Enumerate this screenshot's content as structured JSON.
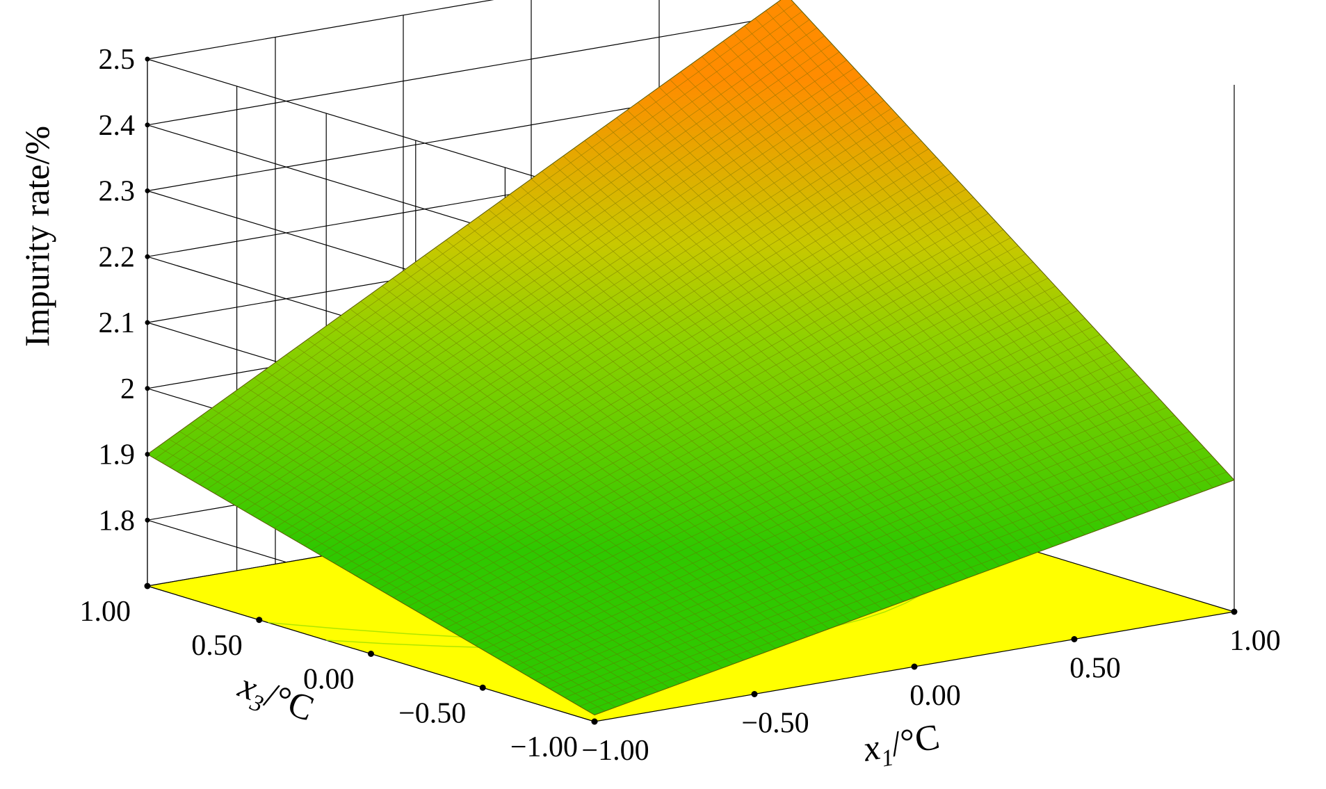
{
  "chart_data": {
    "type": "surface-3d",
    "zlabel": "Impurity rate/%",
    "x1_label": {
      "var": "x",
      "sub": "1",
      "unit": "/°C"
    },
    "x3_label": {
      "var": "x",
      "sub": "3",
      "unit": "/°C"
    },
    "z_ticks": [
      "1.8",
      "1.9",
      "2",
      "2.1",
      "2.2",
      "2.3",
      "2.4",
      "2.5"
    ],
    "z_tick_values": [
      1.8,
      1.9,
      2.0,
      2.1,
      2.2,
      2.3,
      2.4,
      2.5
    ],
    "x1_ticks": [
      "−1.00",
      "−0.50",
      "0.00",
      "0.50",
      "1.00"
    ],
    "x1_tick_values": [
      -1,
      -0.5,
      0,
      0.5,
      1
    ],
    "x3_ticks": [
      "−1.00",
      "−0.50",
      "0.00",
      "0.50",
      "1.00"
    ],
    "x3_tick_values": [
      -1,
      -0.5,
      0,
      0.5,
      1
    ],
    "zlim": [
      1.7,
      2.5
    ],
    "x1_range": [
      -1,
      1
    ],
    "x3_range": [
      -1,
      1
    ],
    "surface_corners": [
      {
        "x1": -1,
        "x3": -1,
        "z": 1.71
      },
      {
        "x1": 1,
        "x3": -1,
        "z": 1.9
      },
      {
        "x1": 1,
        "x3": 1,
        "z": 2.43
      },
      {
        "x1": -1,
        "x3": 1,
        "z": 1.9
      }
    ],
    "colors": {
      "low": "#2fc800",
      "mid": "#c8c800",
      "high": "#ff8c00",
      "floor": "#ffff00",
      "mesh": "#6b6b00",
      "grid": "#000000"
    }
  }
}
